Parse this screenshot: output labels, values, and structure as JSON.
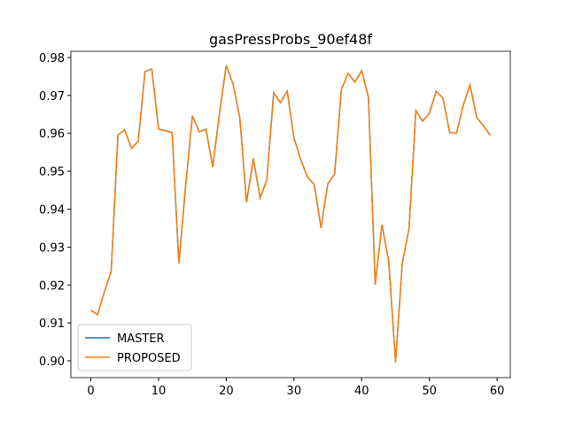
{
  "chart_data": {
    "type": "line",
    "title": "gasPressProbs_90ef48f",
    "x": [
      0,
      1,
      2,
      3,
      4,
      5,
      6,
      7,
      8,
      9,
      10,
      11,
      12,
      13,
      14,
      15,
      16,
      17,
      18,
      19,
      20,
      21,
      22,
      23,
      24,
      25,
      26,
      27,
      28,
      29,
      30,
      31,
      32,
      33,
      34,
      35,
      36,
      37,
      38,
      39,
      40,
      41,
      42,
      43,
      44,
      45,
      46,
      47,
      48,
      49,
      50,
      51,
      52,
      53,
      54,
      55,
      56,
      57,
      58,
      59
    ],
    "series": [
      {
        "name": "MASTER",
        "color": "#1f77b4",
        "values": [
          0.9133,
          0.9122,
          0.9182,
          0.9236,
          0.9595,
          0.9609,
          0.956,
          0.9579,
          0.9763,
          0.977,
          0.9611,
          0.9607,
          0.9602,
          0.9257,
          0.9462,
          0.9646,
          0.9604,
          0.9611,
          0.9511,
          0.9653,
          0.9779,
          0.973,
          0.9641,
          0.9418,
          0.9534,
          0.9429,
          0.9478,
          0.9707,
          0.9681,
          0.9711,
          0.9588,
          0.953,
          0.9485,
          0.9464,
          0.935,
          0.9467,
          0.9492,
          0.9716,
          0.9758,
          0.9735,
          0.9765,
          0.9695,
          0.9201,
          0.9359,
          0.9262,
          0.8996,
          0.9257,
          0.935,
          0.966,
          0.9632,
          0.9653,
          0.9711,
          0.9693,
          0.9602,
          0.96,
          0.9674,
          0.9728,
          0.9641,
          0.962,
          0.9595
        ]
      },
      {
        "name": "PROPOSED",
        "color": "#ff7f0e",
        "values": [
          0.9133,
          0.9122,
          0.9182,
          0.9236,
          0.9595,
          0.9609,
          0.956,
          0.9579,
          0.9763,
          0.977,
          0.9611,
          0.9607,
          0.9602,
          0.9257,
          0.9462,
          0.9646,
          0.9604,
          0.9611,
          0.9511,
          0.9653,
          0.9779,
          0.973,
          0.9641,
          0.9418,
          0.9534,
          0.9429,
          0.9478,
          0.9707,
          0.9681,
          0.9711,
          0.9588,
          0.953,
          0.9485,
          0.9464,
          0.935,
          0.9467,
          0.9492,
          0.9716,
          0.9758,
          0.9735,
          0.9765,
          0.9695,
          0.9201,
          0.9359,
          0.9262,
          0.8996,
          0.9257,
          0.935,
          0.966,
          0.9632,
          0.9653,
          0.9711,
          0.9693,
          0.9602,
          0.96,
          0.9674,
          0.9728,
          0.9641,
          0.962,
          0.9595
        ]
      }
    ],
    "xlim": [
      -2.95,
      61.95
    ],
    "xticks": [
      0,
      10,
      20,
      30,
      40,
      50,
      60
    ],
    "ylim": [
      0.89557,
      0.98163
    ],
    "yticks": [
      {
        "value": 0.9,
        "label": "0.90"
      },
      0.91,
      0.92,
      0.93,
      0.94,
      0.95,
      0.96,
      0.97,
      0.98
    ],
    "legend": "lower left",
    "grid": false
  }
}
